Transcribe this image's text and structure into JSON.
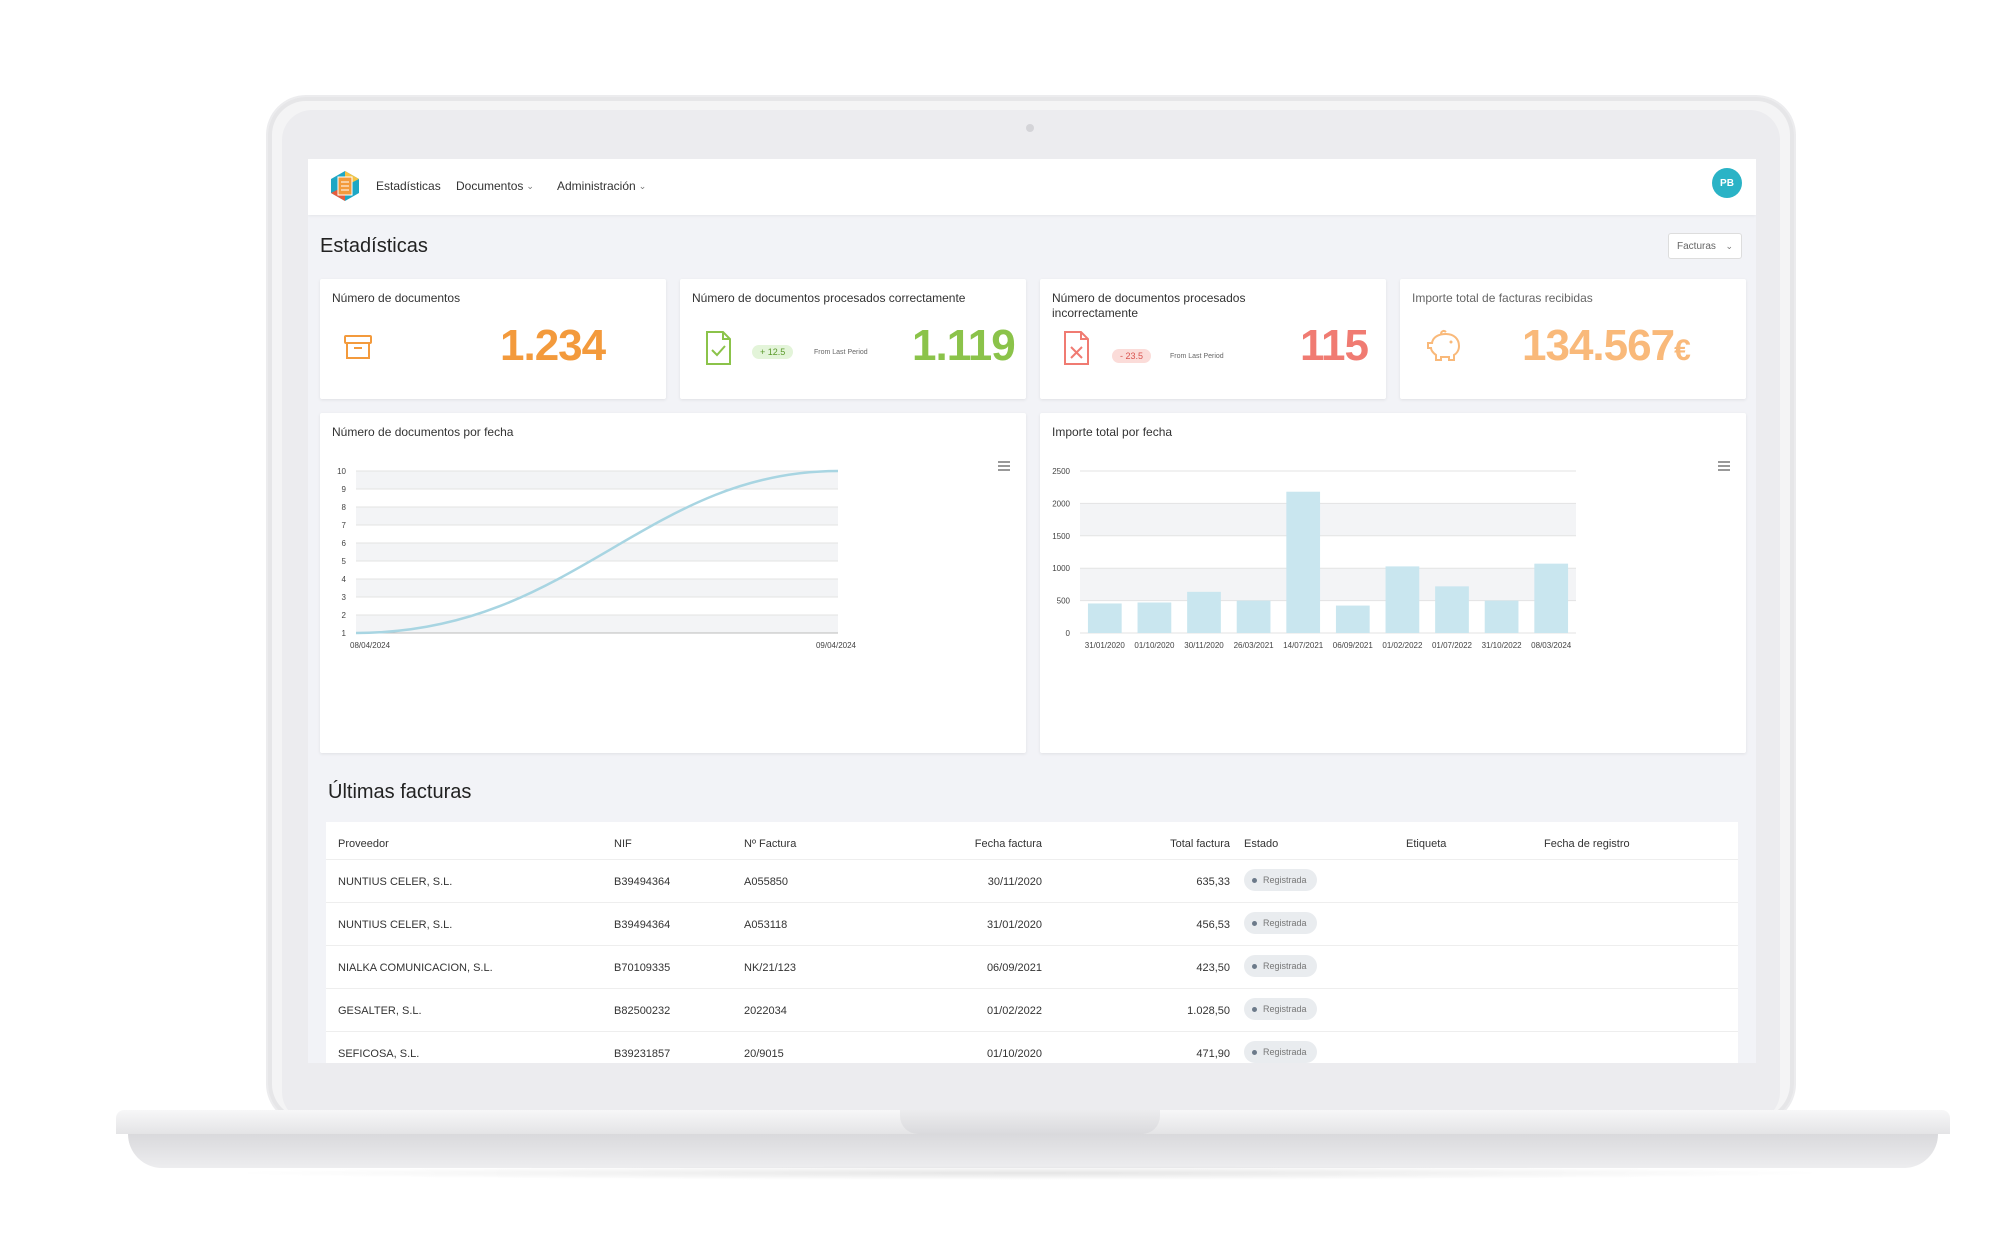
{
  "nav": {
    "items": [
      {
        "label": "Estadísticas",
        "dropdown": false
      },
      {
        "label": "Documentos",
        "dropdown": true
      },
      {
        "label": "Administración",
        "dropdown": true
      }
    ],
    "avatar": "PB"
  },
  "page": {
    "title": "Estadísticas",
    "filter_selected": "Facturas"
  },
  "kpis": [
    {
      "title": "Número de documentos",
      "value": "1.234",
      "icon": "archive-icon",
      "color": "#f39a3c"
    },
    {
      "title": "Número de documentos procesados correctamente",
      "value": "1.119",
      "icon": "file-check-icon",
      "color": "#8bc34a",
      "badge": "+ 12.5",
      "badge_note": "From Last Period"
    },
    {
      "title": "Número de documentos procesados incorrectamente",
      "value": "115",
      "icon": "file-x-icon",
      "color": "#f07b72",
      "badge": "- 23.5",
      "badge_note": "From Last Period"
    },
    {
      "title": "Importe total de facturas recibidas",
      "value": "134.567",
      "currency": "€",
      "icon": "piggy-bank-icon",
      "color": "#f9b97a"
    }
  ],
  "charts": {
    "docs_title": "Número de documentos por fecha",
    "amount_title": "Importe total por fecha"
  },
  "chart_data": [
    {
      "type": "line",
      "title": "Número de documentos por fecha",
      "x": [
        "08/04/2024",
        "09/04/2024"
      ],
      "y_ticks": [
        1,
        2,
        3,
        4,
        5,
        6,
        7,
        8,
        9,
        10
      ],
      "ylim": [
        1,
        10
      ],
      "series": [
        {
          "values": [
            1,
            10
          ]
        }
      ],
      "curve": "s-shaped",
      "color": "#a8d5e2",
      "grid": true
    },
    {
      "type": "bar",
      "title": "Importe total por fecha",
      "categories": [
        "31/01/2020",
        "01/10/2020",
        "30/11/2020",
        "26/03/2021",
        "14/07/2021",
        "06/09/2021",
        "01/02/2022",
        "01/07/2022",
        "31/10/2022",
        "08/03/2024"
      ],
      "values": [
        456,
        471,
        635,
        500,
        2180,
        423,
        1028,
        720,
        500,
        1070
      ],
      "y_ticks": [
        0,
        500,
        1000,
        1500,
        2000,
        2500
      ],
      "ylim": [
        0,
        2500
      ],
      "color": "#c9e6ef",
      "grid": true
    }
  ],
  "invoices": {
    "title": "Últimas facturas",
    "columns": [
      "Proveedor",
      "NIF",
      "Nº Factura",
      "Fecha factura",
      "Total factura",
      "Estado",
      "Etiqueta",
      "Fecha de registro"
    ],
    "rows": [
      {
        "proveedor": "NUNTIUS CELER, S.L.",
        "nif": "B39494364",
        "numero": "A055850",
        "fecha": "30/11/2020",
        "total": "635,33",
        "estado": "Registrada"
      },
      {
        "proveedor": "NUNTIUS CELER, S.L.",
        "nif": "B39494364",
        "numero": "A053118",
        "fecha": "31/01/2020",
        "total": "456,53",
        "estado": "Registrada"
      },
      {
        "proveedor": "NIALKA COMUNICACION, S.L.",
        "nif": "B70109335",
        "numero": "NK/21/123",
        "fecha": "06/09/2021",
        "total": "423,50",
        "estado": "Registrada"
      },
      {
        "proveedor": "GESALTER, S.L.",
        "nif": "B82500232",
        "numero": "2022034",
        "fecha": "01/02/2022",
        "total": "1.028,50",
        "estado": "Registrada"
      },
      {
        "proveedor": "SEFICOSA, S.L.",
        "nif": "B39231857",
        "numero": "20/9015",
        "fecha": "01/10/2020",
        "total": "471,90",
        "estado": "Registrada"
      }
    ]
  }
}
